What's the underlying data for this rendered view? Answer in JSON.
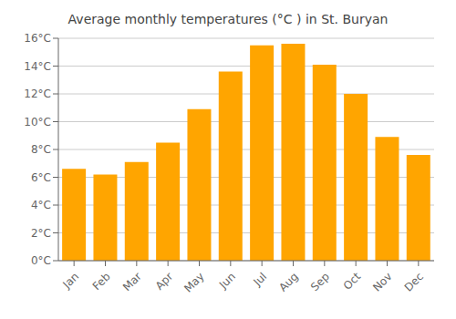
{
  "chart_data": {
    "type": "bar",
    "title": "Average monthly temperatures (°C ) in St. Buryan",
    "categories": [
      "Jan",
      "Feb",
      "Mar",
      "Apr",
      "May",
      "Jun",
      "Jul",
      "Aug",
      "Sep",
      "Oct",
      "Nov",
      "Dec"
    ],
    "values": [
      6.6,
      6.2,
      7.1,
      8.5,
      10.9,
      13.6,
      15.5,
      15.6,
      14.1,
      12.0,
      8.9,
      7.6
    ],
    "color": "#FFA500",
    "ylim": [
      0,
      16
    ],
    "yticks": [
      {
        "value": 0,
        "label": "0°C"
      },
      {
        "value": 2,
        "label": "2°C"
      },
      {
        "value": 4,
        "label": "4°C"
      },
      {
        "value": 6,
        "label": "6°C"
      },
      {
        "value": 8,
        "label": "8°C"
      },
      {
        "value": 10,
        "label": "10°C"
      },
      {
        "value": 12,
        "label": "12°C"
      },
      {
        "value": 14,
        "label": "14°C"
      },
      {
        "value": 16,
        "label": "16°C"
      }
    ],
    "grid": true
  }
}
